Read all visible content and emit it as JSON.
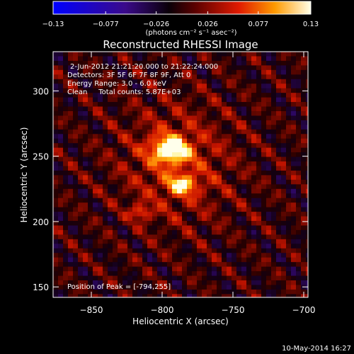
{
  "chart_data": {
    "type": "heatmap",
    "title": "Reconstructed RHESSI Image",
    "xlabel": "Heliocentric X (arcsec)",
    "ylabel": "Heliocentric Y (arcsec)",
    "xlim": [
      -877,
      -697
    ],
    "ylim": [
      142,
      330
    ],
    "x_ticks": [
      -850,
      -800,
      -750,
      -700
    ],
    "x_tick_labels": [
      "−850",
      "−800",
      "−750",
      "−700"
    ],
    "y_ticks": [
      150,
      200,
      250,
      300
    ],
    "y_tick_labels": [
      "150",
      "200",
      "250",
      "300"
    ],
    "colorbar": {
      "range": [
        -0.13,
        0.13
      ],
      "ticks": [
        -0.13,
        -0.077,
        -0.026,
        0.026,
        0.077,
        0.13
      ],
      "tick_labels": [
        "−0.13",
        "−0.077",
        "−0.026",
        "0.026",
        "0.077",
        "0.13"
      ],
      "unit_label": "(photons cm⁻² s⁻¹ asec⁻²)",
      "colormap": "blue-purple-black-red-orange-yellow-white"
    },
    "annotations": {
      "time_range": "2-Jun-2012 21:21:20.000 to 21:22:24.000",
      "detectors": "Detectors: 3F 5F 6F 7F 8F 9F, Att 0",
      "energy": "Energy Range: 3.0 - 6.0 keV",
      "method_counts": "Clean     Total counts: 5.87E+03",
      "peak": "Position of Peak = [-794,255]"
    },
    "sources": [
      {
        "x": -794,
        "y": 255,
        "peak": 0.13
      },
      {
        "x": -786,
        "y": 228,
        "peak": 0.095
      },
      {
        "x": -815,
        "y": 207,
        "peak": 0.06
      }
    ],
    "peak_position": [
      -794,
      255
    ]
  },
  "footer": {
    "timestamp": "10-May-2014 16:27"
  }
}
